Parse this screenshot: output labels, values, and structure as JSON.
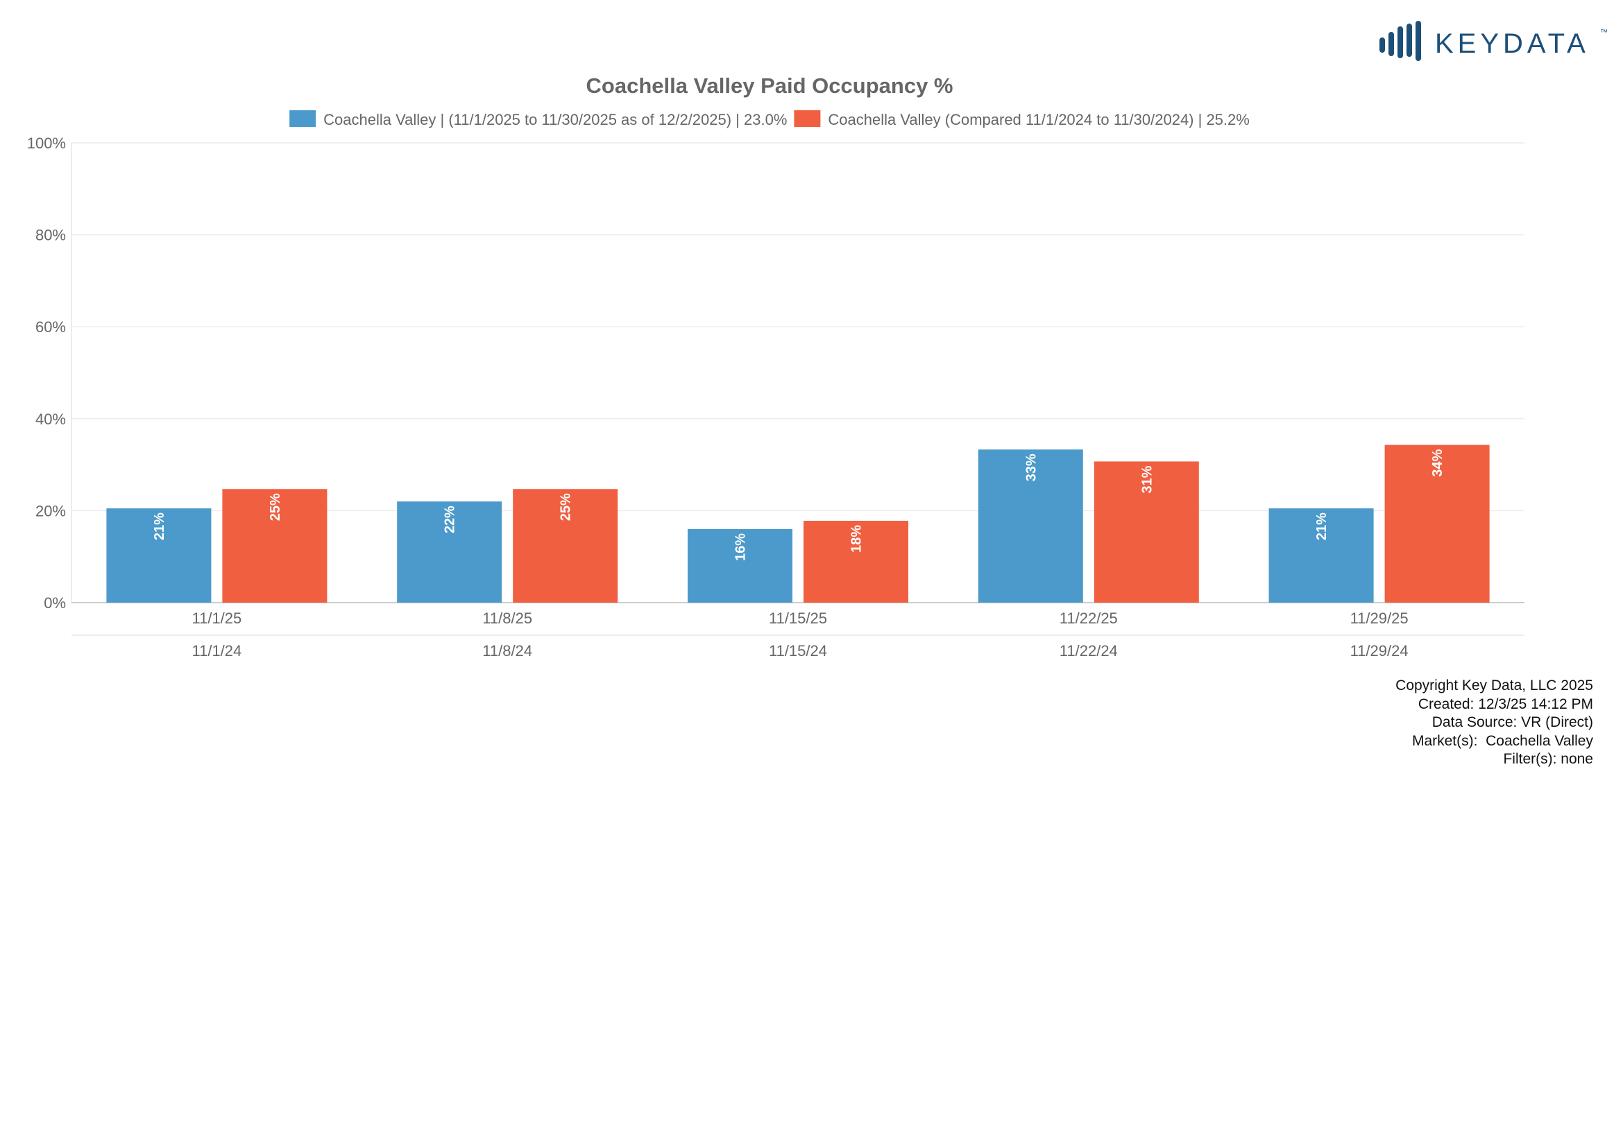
{
  "brand": {
    "logo_text": "KEYDATA",
    "trademark": "™",
    "color": "#1d4f78"
  },
  "colors": {
    "current": "#4b9acb",
    "compare": "#f05f40",
    "grid": "#ececec",
    "axis_text": "#666666",
    "title": "#666666"
  },
  "chart_data": {
    "type": "bar",
    "title": "Coachella Valley Paid Occupancy %",
    "xlabel": "",
    "ylabel": "",
    "ylim": [
      0,
      100
    ],
    "yticks": [
      "0%",
      "20%",
      "40%",
      "60%",
      "80%",
      "100%"
    ],
    "grid": true,
    "legend_position": "top",
    "categories": [
      "11/1/25",
      "11/8/25",
      "11/15/25",
      "11/22/25",
      "11/29/25"
    ],
    "categories_secondary": [
      "11/1/24",
      "11/8/24",
      "11/15/24",
      "11/22/24",
      "11/29/24"
    ],
    "series": [
      {
        "name": "Coachella Valley | (11/1/2025 to 11/30/2025 as of 12/2/2025) | 23.0%",
        "color": "#4b9acb",
        "values": [
          20.5,
          22,
          16,
          33.3,
          20.5
        ],
        "labels": [
          "21%",
          "22%",
          "16%",
          "33%",
          "21%"
        ]
      },
      {
        "name": "Coachella Valley (Compared 11/1/2024 to 11/30/2024) | 25.2%",
        "color": "#f05f40",
        "values": [
          24.7,
          24.7,
          17.8,
          30.7,
          34.3
        ],
        "labels": [
          "25%",
          "25%",
          "18%",
          "31%",
          "34%"
        ]
      }
    ]
  },
  "footer": {
    "copyright": "Copyright Key Data, LLC 2025",
    "created": "Created: 12/3/25 14:12 PM",
    "source": "Data Source: VR (Direct)",
    "markets": "Market(s):  Coachella Valley",
    "filters": "Filter(s): none"
  }
}
